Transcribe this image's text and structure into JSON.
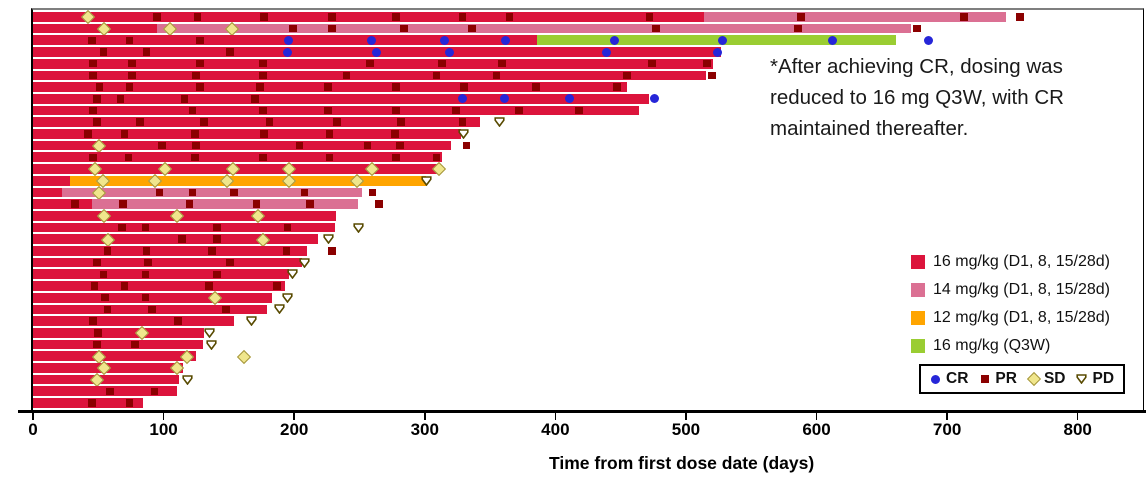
{
  "annotation": {
    "line1": "*After achieving CR, dosing was",
    "line2": "reduced to 16 mg Q3W, with CR",
    "line3": "maintained thereafter."
  },
  "axis": {
    "title": "Time from first dose date (days)",
    "ticks": [
      0,
      100,
      200,
      300,
      400,
      500,
      600,
      700,
      800
    ],
    "max": 850
  },
  "colors": {
    "dose16": "#DC143C",
    "dose14": "#DB7093",
    "dose12": "#FFA500",
    "doseQ3W": "#9ACD32",
    "cr": "#2626D8",
    "pr": "#8B0000",
    "sd": "#F0E68C",
    "sd_border": "#A3943C",
    "pd_stroke": "#584A00",
    "frame": "#7f7f7f"
  },
  "legend": {
    "doses": [
      {
        "key": "16",
        "label": "16 mg/kg (D1, 8, 15/28d)"
      },
      {
        "key": "14",
        "label": "14 mg/kg (D1, 8, 15/28d)"
      },
      {
        "key": "12",
        "label": "12 mg/kg (D1, 8, 15/28d)"
      },
      {
        "key": "Q3W",
        "label": "16 mg/kg (Q3W)"
      }
    ],
    "responses": [
      {
        "key": "CR",
        "label": "CR"
      },
      {
        "key": "PR",
        "label": "PR"
      },
      {
        "key": "SD",
        "label": "SD"
      },
      {
        "key": "PD",
        "label": "PD"
      }
    ]
  },
  "chart_data": {
    "type": "bar",
    "subtype": "swimmer-plot",
    "xlabel": "Time from first dose date (days)",
    "xlim": [
      0,
      850
    ],
    "x_ticks": [
      0,
      100,
      200,
      300,
      400,
      500,
      600,
      700,
      800
    ],
    "dose_key_colors": {
      "16": "#DC143C",
      "14": "#DB7093",
      "12": "#FFA500",
      "Q3W": "#9ACD32"
    },
    "marker_types": {
      "CR": "blue circle",
      "PR": "dark red square",
      "SD": "khaki diamond",
      "PD": "open down-triangle"
    },
    "patients": [
      {
        "segments": [
          [
            "16",
            0,
            514
          ],
          [
            "14",
            514,
            745
          ]
        ],
        "markers": [
          [
            "SD",
            42
          ],
          [
            "PR",
            95
          ],
          [
            "PR",
            126
          ],
          [
            "PR",
            177
          ],
          [
            "PR",
            229
          ],
          [
            "PR",
            278
          ],
          [
            "PR",
            329
          ],
          [
            "PR",
            365
          ],
          [
            "PR",
            472
          ],
          [
            "PR",
            588
          ],
          [
            "PR",
            713
          ],
          [
            "PR",
            756
          ]
        ]
      },
      {
        "segments": [
          [
            "16",
            0,
            95
          ],
          [
            "14",
            95,
            672
          ]
        ],
        "markers": [
          [
            "SD",
            54
          ],
          [
            "SD",
            105
          ],
          [
            "SD",
            152
          ],
          [
            "PR",
            199
          ],
          [
            "PR",
            229
          ],
          [
            "PR",
            284
          ],
          [
            "PR",
            336
          ],
          [
            "PR",
            477
          ],
          [
            "PR",
            586
          ],
          [
            "PR",
            677
          ]
        ]
      },
      {
        "segments": [
          [
            "16",
            0,
            386
          ],
          [
            "Q3W",
            386,
            661
          ]
        ],
        "markers": [
          [
            "PR",
            45
          ],
          [
            "PR",
            74
          ],
          [
            "PR",
            128
          ],
          [
            "CR",
            196
          ],
          [
            "CR",
            259
          ],
          [
            "CR",
            315
          ],
          [
            "CR",
            362
          ],
          [
            "CR",
            445
          ],
          [
            "CR",
            528
          ],
          [
            "CR",
            612
          ],
          [
            "CR",
            686
          ]
        ]
      },
      {
        "segments": [
          [
            "16",
            0,
            527
          ]
        ],
        "markers": [
          [
            "PR",
            54
          ],
          [
            "PR",
            87
          ],
          [
            "PR",
            151
          ],
          [
            "CR",
            195
          ],
          [
            "CR",
            263
          ],
          [
            "CR",
            319
          ],
          [
            "CR",
            439
          ],
          [
            "CR",
            524
          ]
        ]
      },
      {
        "segments": [
          [
            "16",
            0,
            521
          ]
        ],
        "markers": [
          [
            "PR",
            46
          ],
          [
            "PR",
            76
          ],
          [
            "PR",
            128
          ],
          [
            "PR",
            176
          ],
          [
            "PR",
            258
          ],
          [
            "PR",
            313
          ],
          [
            "PR",
            359
          ],
          [
            "PR",
            474
          ],
          [
            "PR",
            516
          ]
        ]
      },
      {
        "segments": [
          [
            "16",
            0,
            515
          ]
        ],
        "markers": [
          [
            "PR",
            46
          ],
          [
            "PR",
            76
          ],
          [
            "PR",
            125
          ],
          [
            "PR",
            176
          ],
          [
            "PR",
            240
          ],
          [
            "PR",
            309
          ],
          [
            "PR",
            355
          ],
          [
            "PR",
            455
          ],
          [
            "PR",
            520
          ]
        ]
      },
      {
        "segments": [
          [
            "16",
            0,
            455
          ]
        ],
        "markers": [
          [
            "PR",
            51
          ],
          [
            "PR",
            74
          ],
          [
            "PR",
            128
          ],
          [
            "PR",
            174
          ],
          [
            "PR",
            226
          ],
          [
            "PR",
            278
          ],
          [
            "PR",
            330
          ],
          [
            "PR",
            385
          ],
          [
            "PR",
            447
          ]
        ]
      },
      {
        "segments": [
          [
            "16",
            0,
            472
          ]
        ],
        "markers": [
          [
            "PR",
            49
          ],
          [
            "PR",
            67
          ],
          [
            "PR",
            116
          ],
          [
            "PR",
            170
          ],
          [
            "CR",
            329
          ],
          [
            "CR",
            361
          ],
          [
            "CR",
            411
          ],
          [
            "CR",
            476
          ]
        ]
      },
      {
        "segments": [
          [
            "16",
            0,
            464
          ]
        ],
        "markers": [
          [
            "PR",
            46
          ],
          [
            "PR",
            122
          ],
          [
            "PR",
            176
          ],
          [
            "PR",
            226
          ],
          [
            "PR",
            278
          ],
          [
            "PR",
            324
          ],
          [
            "PR",
            372
          ],
          [
            "PR",
            418
          ]
        ]
      },
      {
        "segments": [
          [
            "16",
            0,
            342
          ]
        ],
        "markers": [
          [
            "PR",
            49
          ],
          [
            "PR",
            82
          ],
          [
            "PR",
            131
          ],
          [
            "PR",
            181
          ],
          [
            "PR",
            233
          ],
          [
            "PR",
            282
          ],
          [
            "PR",
            329
          ],
          [
            "PD",
            357
          ]
        ]
      },
      {
        "segments": [
          [
            "16",
            0,
            328
          ]
        ],
        "markers": [
          [
            "PR",
            42
          ],
          [
            "PR",
            70
          ],
          [
            "PR",
            124
          ],
          [
            "PR",
            177
          ],
          [
            "PR",
            227
          ],
          [
            "PR",
            277
          ],
          [
            "PD",
            330
          ]
        ]
      },
      {
        "segments": [
          [
            "16",
            0,
            320
          ]
        ],
        "markers": [
          [
            "SD",
            50
          ],
          [
            "PR",
            99
          ],
          [
            "PR",
            125
          ],
          [
            "PR",
            204
          ],
          [
            "PR",
            256
          ],
          [
            "PR",
            281
          ],
          [
            "PR",
            332
          ]
        ]
      },
      {
        "segments": [
          [
            "16",
            0,
            313
          ]
        ],
        "markers": [
          [
            "PR",
            46
          ],
          [
            "PR",
            73
          ],
          [
            "PR",
            124
          ],
          [
            "PR",
            176
          ],
          [
            "PR",
            227
          ],
          [
            "PR",
            278
          ],
          [
            "PR",
            309
          ]
        ]
      },
      {
        "segments": [
          [
            "16",
            0,
            312
          ]
        ],
        "markers": [
          [
            "SD",
            47
          ],
          [
            "SD",
            101
          ],
          [
            "SD",
            153
          ],
          [
            "SD",
            196
          ],
          [
            "SD",
            259
          ],
          [
            "SD",
            311
          ]
        ]
      },
      {
        "segments": [
          [
            "16",
            0,
            28
          ],
          [
            "12",
            28,
            301
          ]
        ],
        "markers": [
          [
            "SD",
            53
          ],
          [
            "SD",
            93
          ],
          [
            "SD",
            148
          ],
          [
            "SD",
            196
          ],
          [
            "SD",
            248
          ],
          [
            "PD",
            301
          ]
        ]
      },
      {
        "segments": [
          [
            "16",
            0,
            22
          ],
          [
            "14",
            22,
            252
          ]
        ],
        "markers": [
          [
            "SD",
            50
          ],
          [
            "PR",
            97
          ],
          [
            "PR",
            122
          ],
          [
            "PR",
            154
          ],
          [
            "PR",
            208
          ],
          [
            "PR",
            260
          ]
        ]
      },
      {
        "segments": [
          [
            "16",
            0,
            45
          ],
          [
            "14",
            45,
            249
          ]
        ],
        "markers": [
          [
            "PR",
            32
          ],
          [
            "PR",
            69
          ],
          [
            "PR",
            120
          ],
          [
            "PR",
            171
          ],
          [
            "PR",
            212
          ],
          [
            "PR",
            265
          ]
        ]
      },
      {
        "segments": [
          [
            "16",
            0,
            232
          ]
        ],
        "markers": [
          [
            "SD",
            54
          ],
          [
            "SD",
            110
          ],
          [
            "SD",
            172
          ]
        ]
      },
      {
        "segments": [
          [
            "16",
            0,
            231
          ]
        ],
        "markers": [
          [
            "PR",
            68
          ],
          [
            "PR",
            86
          ],
          [
            "PR",
            141
          ],
          [
            "PR",
            195
          ],
          [
            "PD",
            249
          ]
        ]
      },
      {
        "segments": [
          [
            "16",
            0,
            218
          ]
        ],
        "markers": [
          [
            "SD",
            57
          ],
          [
            "PR",
            114
          ],
          [
            "PR",
            141
          ],
          [
            "SD",
            176
          ],
          [
            "PD",
            226
          ]
        ]
      },
      {
        "segments": [
          [
            "16",
            0,
            210
          ]
        ],
        "markers": [
          [
            "PR",
            57
          ],
          [
            "PR",
            87
          ],
          [
            "PR",
            137
          ],
          [
            "PR",
            194
          ],
          [
            "PR",
            229
          ]
        ]
      },
      {
        "segments": [
          [
            "16",
            0,
            206
          ]
        ],
        "markers": [
          [
            "PR",
            49
          ],
          [
            "PR",
            88
          ],
          [
            "PR",
            151
          ],
          [
            "PD",
            208
          ]
        ]
      },
      {
        "segments": [
          [
            "16",
            0,
            196
          ]
        ],
        "markers": [
          [
            "PR",
            54
          ],
          [
            "PR",
            86
          ],
          [
            "PR",
            141
          ],
          [
            "PD",
            199
          ]
        ]
      },
      {
        "segments": [
          [
            "16",
            0,
            193
          ]
        ],
        "markers": [
          [
            "PR",
            47
          ],
          [
            "PR",
            70
          ],
          [
            "PR",
            135
          ],
          [
            "PR",
            187
          ]
        ]
      },
      {
        "segments": [
          [
            "16",
            0,
            183
          ]
        ],
        "markers": [
          [
            "PR",
            55
          ],
          [
            "PR",
            86
          ],
          [
            "SD",
            139
          ],
          [
            "PD",
            195
          ]
        ]
      },
      {
        "segments": [
          [
            "16",
            0,
            179
          ]
        ],
        "markers": [
          [
            "PR",
            57
          ],
          [
            "PR",
            91
          ],
          [
            "PR",
            148
          ],
          [
            "PD",
            189
          ]
        ]
      },
      {
        "segments": [
          [
            "16",
            0,
            154
          ]
        ],
        "markers": [
          [
            "PR",
            46
          ],
          [
            "PR",
            111
          ],
          [
            "PD",
            167
          ]
        ]
      },
      {
        "segments": [
          [
            "16",
            0,
            131
          ]
        ],
        "markers": [
          [
            "PR",
            50
          ],
          [
            "SD",
            83
          ],
          [
            "PD",
            135
          ]
        ]
      },
      {
        "segments": [
          [
            "16",
            0,
            130
          ]
        ],
        "markers": [
          [
            "PR",
            49
          ],
          [
            "PR",
            78
          ],
          [
            "PD",
            137
          ]
        ]
      },
      {
        "segments": [
          [
            "16",
            0,
            125
          ]
        ],
        "markers": [
          [
            "SD",
            50
          ],
          [
            "SD",
            118
          ],
          [
            "SD",
            161
          ]
        ]
      },
      {
        "segments": [
          [
            "16",
            0,
            115
          ]
        ],
        "markers": [
          [
            "SD",
            54
          ],
          [
            "SD",
            110
          ]
        ]
      },
      {
        "segments": [
          [
            "16",
            0,
            112
          ]
        ],
        "markers": [
          [
            "SD",
            49
          ],
          [
            "PD",
            118
          ]
        ]
      },
      {
        "segments": [
          [
            "16",
            0,
            110
          ]
        ],
        "markers": [
          [
            "PR",
            59
          ],
          [
            "PR",
            93
          ]
        ]
      },
      {
        "segments": [
          [
            "16",
            0,
            84
          ]
        ],
        "markers": [
          [
            "PR",
            45
          ],
          [
            "PR",
            74
          ]
        ]
      }
    ]
  }
}
